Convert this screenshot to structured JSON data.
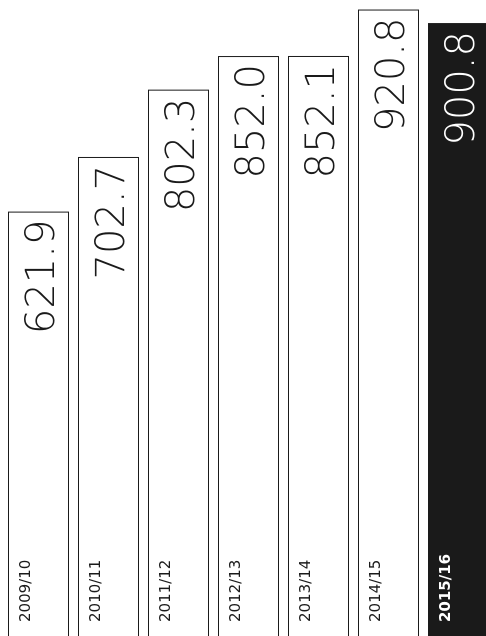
{
  "chart_data": {
    "type": "bar",
    "categories": [
      "2009/10",
      "2010/11",
      "2011/12",
      "2012/13",
      "2013/14",
      "2014/15",
      "2015/16"
    ],
    "values": [
      621.9,
      702.7,
      802.3,
      852.0,
      852.1,
      920.8,
      900.8
    ],
    "value_labels": [
      "621.9",
      "702.7",
      "802.3",
      "852.0",
      "852.1",
      "920.8",
      "900.8"
    ],
    "colors": [
      "#ffffff",
      "#ffffff",
      "#ffffff",
      "#ffffff",
      "#ffffff",
      "#ffffff",
      "#1a1a1a"
    ]
  }
}
